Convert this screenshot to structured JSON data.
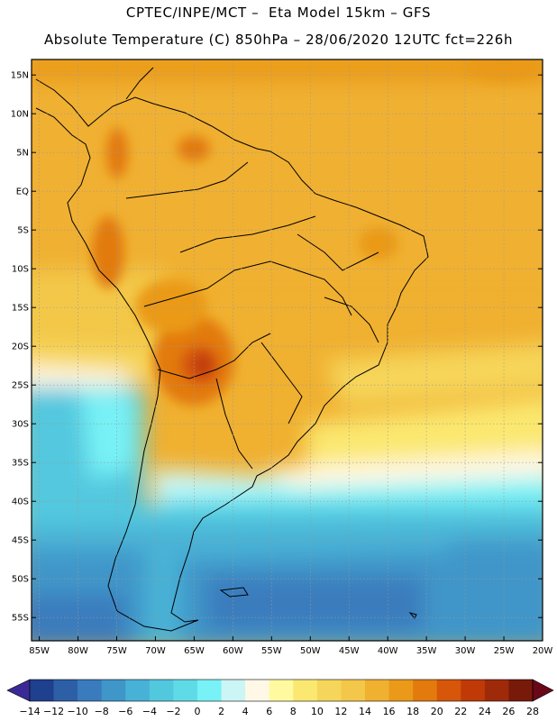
{
  "header": {
    "line1": "CPTEC/INPE/MCT –  Eta Model 15km – GFS",
    "line2": "Absolute Temperature (C) 850hPa – 28/06/2020 12UTC fct=226h"
  },
  "map": {
    "lon_range": [
      -86,
      -20
    ],
    "lat_range": [
      -58,
      17
    ],
    "lat_labels": [
      "15N",
      "10N",
      "5N",
      "EQ",
      "5S",
      "10S",
      "15S",
      "20S",
      "25S",
      "30S",
      "35S",
      "40S",
      "45S",
      "50S",
      "55S"
    ],
    "lat_values": [
      15,
      10,
      5,
      0,
      -5,
      -10,
      -15,
      -20,
      -25,
      -30,
      -35,
      -40,
      -45,
      -50,
      -55
    ],
    "lon_labels": [
      "85W",
      "80W",
      "75W",
      "70W",
      "65W",
      "60W",
      "55W",
      "50W",
      "45W",
      "40W",
      "35W",
      "30W",
      "25W",
      "20W"
    ],
    "lon_values": [
      -85,
      -80,
      -75,
      -70,
      -65,
      -60,
      -55,
      -50,
      -45,
      -40,
      -35,
      -30,
      -25,
      -20
    ]
  },
  "colorbar": {
    "tick_labels": [
      "-14",
      "-12",
      "-10",
      "-8",
      "-6",
      "-4",
      "-2",
      "0",
      "2",
      "4",
      "6",
      "8",
      "10",
      "12",
      "14",
      "16",
      "18",
      "20",
      "22",
      "24",
      "26",
      "28"
    ],
    "colors": [
      "#1f3f8f",
      "#2c5fa6",
      "#3a7bbd",
      "#3f96c9",
      "#48b2d6",
      "#52c8df",
      "#5fdbe8",
      "#78f2f6",
      "#ccf5f5",
      "#fff8e6",
      "#fffaa0",
      "#fbe870",
      "#f6d65a",
      "#f3c84a",
      "#f0b030",
      "#ea9a18",
      "#e27a0e",
      "#d6560a",
      "#c03a08",
      "#9e2a0a",
      "#781a0a"
    ],
    "low_color": "#3b2a96",
    "high_color": "#6b0818"
  }
}
